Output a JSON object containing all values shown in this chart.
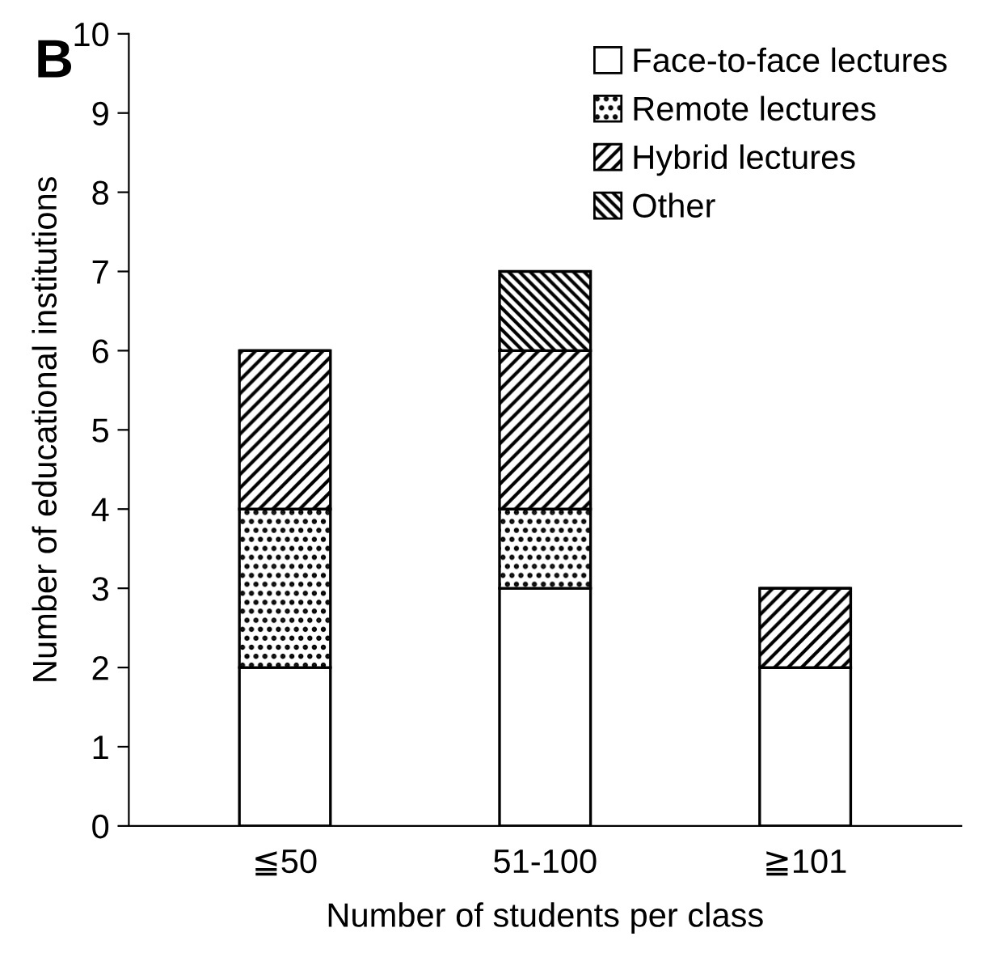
{
  "chart_data": {
    "type": "bar",
    "stacked": true,
    "xlabel": "Number of students per class",
    "ylabel": "Number of educational institutions",
    "categories": [
      "≦50",
      "51-100",
      "≧101"
    ],
    "series": [
      {
        "name": "Face-to-face lectures",
        "color": "#ffffff",
        "values": [
          2,
          3,
          2
        ]
      },
      {
        "name": "Remote lectures",
        "color": "#000000",
        "values": [
          2,
          1,
          0
        ]
      },
      {
        "name": "Hybrid lectures",
        "color": "#000000",
        "values": [
          2,
          2,
          1
        ]
      },
      {
        "name": "Other",
        "color": "#000000",
        "values": [
          0,
          1,
          0
        ]
      }
    ],
    "ylim": [
      0,
      10
    ],
    "yticks": [
      0,
      1,
      2,
      3,
      4,
      5,
      6,
      7,
      8,
      9,
      10
    ],
    "grid": false,
    "legend": "top right",
    "annotations": [
      "B"
    ]
  }
}
